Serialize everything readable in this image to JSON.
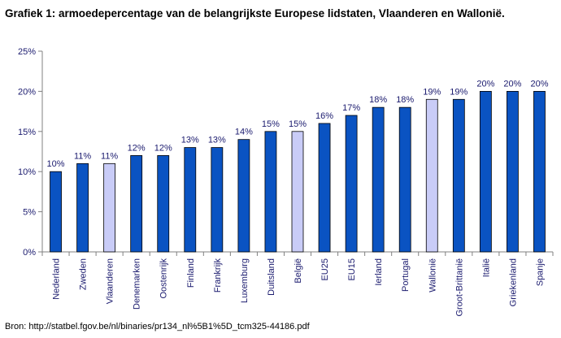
{
  "title": "Grafiek 1: armoedepercentage van de belangrijkste Europese lidstaten, Vlaanderen en Wallonië.",
  "source": "Bron: http://statbel.fgov.be/nl/binaries/pr134_nl%5B1%5D_tcm325-44186.pdf",
  "colors": {
    "primary_bar": "#0a53c2",
    "highlight_bar": "#c9ccf7",
    "bar_outline": "#000000",
    "text": "#1a1a6e"
  },
  "chart_data": {
    "type": "bar",
    "categories": [
      "Nederland",
      "Zweden",
      "Vlaanderen",
      "Denemarken",
      "Oostenrijk",
      "Finland",
      "Frankrijk",
      "Luxemburg",
      "Duitsland",
      "België",
      "EU25",
      "EU15",
      "Ierland",
      "Portugal",
      "Wallonië",
      "Groot-Brittanië",
      "Italië",
      "Griekenland",
      "Spanje"
    ],
    "values": [
      10,
      11,
      11,
      12,
      12,
      13,
      13,
      14,
      15,
      15,
      16,
      17,
      18,
      18,
      19,
      19,
      20,
      20,
      20
    ],
    "data_labels": [
      "10%",
      "11%",
      "11%",
      "12%",
      "12%",
      "13%",
      "13%",
      "14%",
      "15%",
      "15%",
      "16%",
      "17%",
      "18%",
      "18%",
      "19%",
      "19%",
      "20%",
      "20%",
      "20%"
    ],
    "highlighted": [
      "Vlaanderen",
      "België",
      "Wallonië"
    ],
    "y_ticks": [
      "0%",
      "5%",
      "10%",
      "15%",
      "20%",
      "25%"
    ],
    "ylim": [
      0,
      25
    ],
    "ystep": 5,
    "grid": false,
    "legend": "none"
  }
}
